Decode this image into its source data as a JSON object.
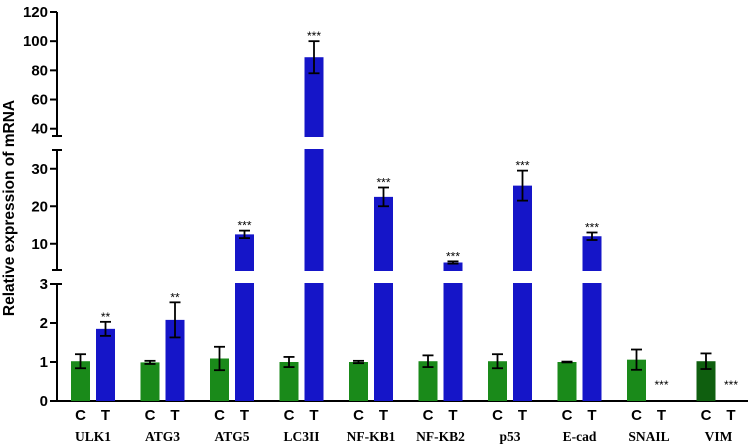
{
  "chart_data": {
    "type": "bar",
    "ylabel": "Relative expression of mRNA",
    "axis_segments": [
      {
        "range": [
          0,
          3
        ],
        "ticks": [
          0,
          1,
          2,
          3
        ]
      },
      {
        "range": [
          3,
          35
        ],
        "ticks": [
          10,
          20,
          30
        ]
      },
      {
        "range": [
          35,
          120
        ],
        "ticks": [
          40,
          60,
          80,
          100,
          120
        ]
      }
    ],
    "group_labels": [
      "C",
      "T"
    ],
    "colors": {
      "C": "#1a8a1a",
      "T": "#1515c8",
      "C_alt": "#0f5f0f"
    },
    "categories": [
      {
        "label": "ULK1",
        "C": {
          "value": 1.02,
          "err": 0.18,
          "sig": ""
        },
        "T": {
          "value": 1.85,
          "err": 0.18,
          "sig": "**"
        }
      },
      {
        "label": "ATG3",
        "C": {
          "value": 0.99,
          "err": 0.04,
          "sig": ""
        },
        "T": {
          "value": 2.08,
          "err": 0.45,
          "sig": "**"
        }
      },
      {
        "label": "ATG5",
        "C": {
          "value": 1.09,
          "err": 0.3,
          "sig": ""
        },
        "T": {
          "value": 12.5,
          "err": 1.0,
          "sig": "***"
        }
      },
      {
        "label": "LC3II",
        "C": {
          "value": 1.0,
          "err": 0.13,
          "sig": ""
        },
        "T": {
          "value": 89,
          "err": 11,
          "sig": "***"
        }
      },
      {
        "label": "NF-KB1",
        "C": {
          "value": 1.0,
          "err": 0.03,
          "sig": ""
        },
        "T": {
          "value": 22.5,
          "err": 2.5,
          "sig": "***"
        }
      },
      {
        "label": "NF-KB2",
        "C": {
          "value": 1.02,
          "err": 0.15,
          "sig": ""
        },
        "T": {
          "value": 5,
          "err": 0.3,
          "sig": "***"
        }
      },
      {
        "label": "p53",
        "C": {
          "value": 1.02,
          "err": 0.18,
          "sig": ""
        },
        "T": {
          "value": 25.5,
          "err": 4,
          "sig": "***"
        }
      },
      {
        "label": "E-cad",
        "C": {
          "value": 1.0,
          "err": 0.01,
          "sig": ""
        },
        "T": {
          "value": 12,
          "err": 1.0,
          "sig": "***"
        }
      },
      {
        "label": "SNAIL",
        "C": {
          "value": 1.06,
          "err": 0.26,
          "sig": ""
        },
        "T": {
          "value": 0,
          "err": 0,
          "sig": "***"
        }
      },
      {
        "label": "VIM",
        "C": {
          "value": 1.02,
          "err": 0.2,
          "sig": ""
        },
        "T": {
          "value": 0,
          "err": 0,
          "sig": "***"
        }
      }
    ]
  }
}
